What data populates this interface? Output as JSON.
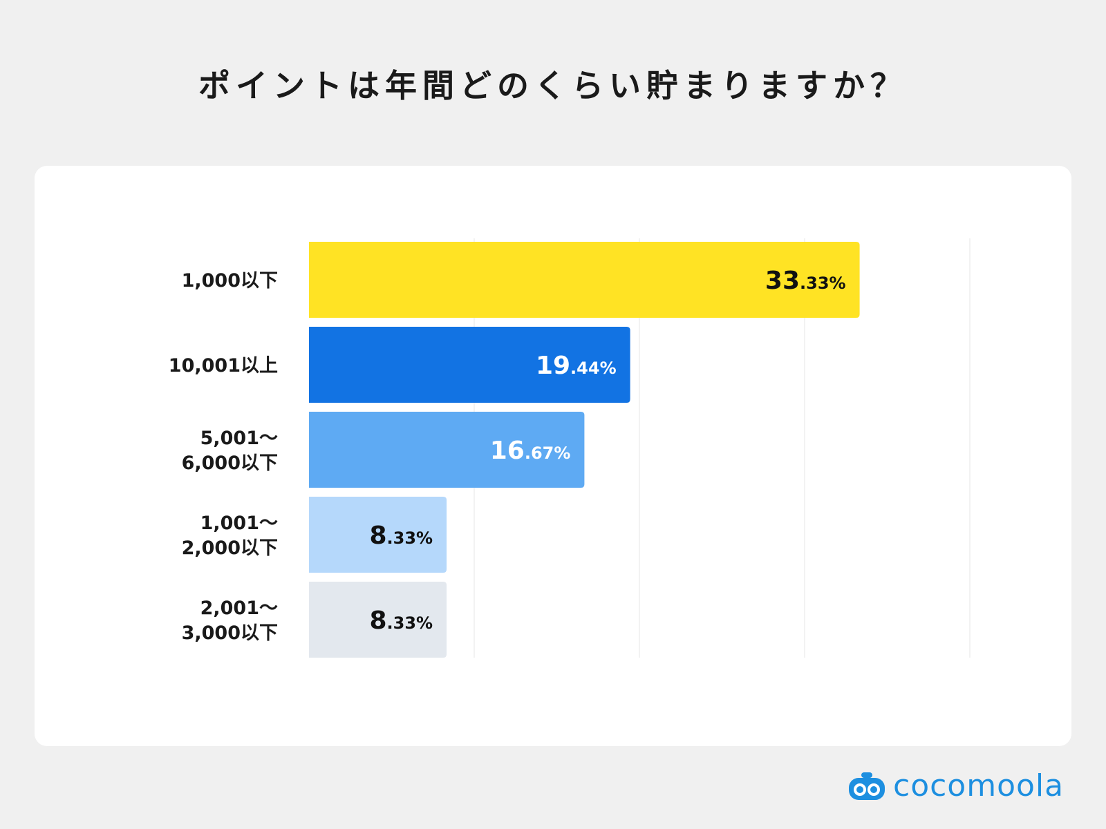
{
  "title": "ポイントは年間どのくらい貯まりますか？",
  "brand": {
    "name": "cocomoola",
    "color": "#1d8fe0",
    "icon": "robot-face-icon"
  },
  "chart_data": {
    "type": "bar",
    "orientation": "horizontal",
    "title": "ポイントは年間どのくらい貯まりますか？",
    "xlim": [
      0,
      40
    ],
    "grid": true,
    "categories": [
      [
        "1,000以下"
      ],
      [
        "10,001以上"
      ],
      [
        "5,001〜",
        "6,000以下"
      ],
      [
        "1,001〜",
        "2,000以下"
      ],
      [
        "2,001〜",
        "3,000以下"
      ]
    ],
    "values": [
      33.33,
      19.44,
      16.67,
      8.33,
      8.33
    ],
    "labels": [
      {
        "int": "33",
        "dec": ".33%"
      },
      {
        "int": "19",
        "dec": ".44%"
      },
      {
        "int": "16",
        "dec": ".67%"
      },
      {
        "int": "8",
        "dec": ".33%"
      },
      {
        "int": "8",
        "dec": ".33%"
      }
    ],
    "colors": [
      "#ffe324",
      "#1273e3",
      "#5eaaf3",
      "#b5d8fb",
      "#e3e8ee"
    ],
    "label_colors": [
      "#111111",
      "#ffffff",
      "#ffffff",
      "#111111",
      "#111111"
    ]
  }
}
